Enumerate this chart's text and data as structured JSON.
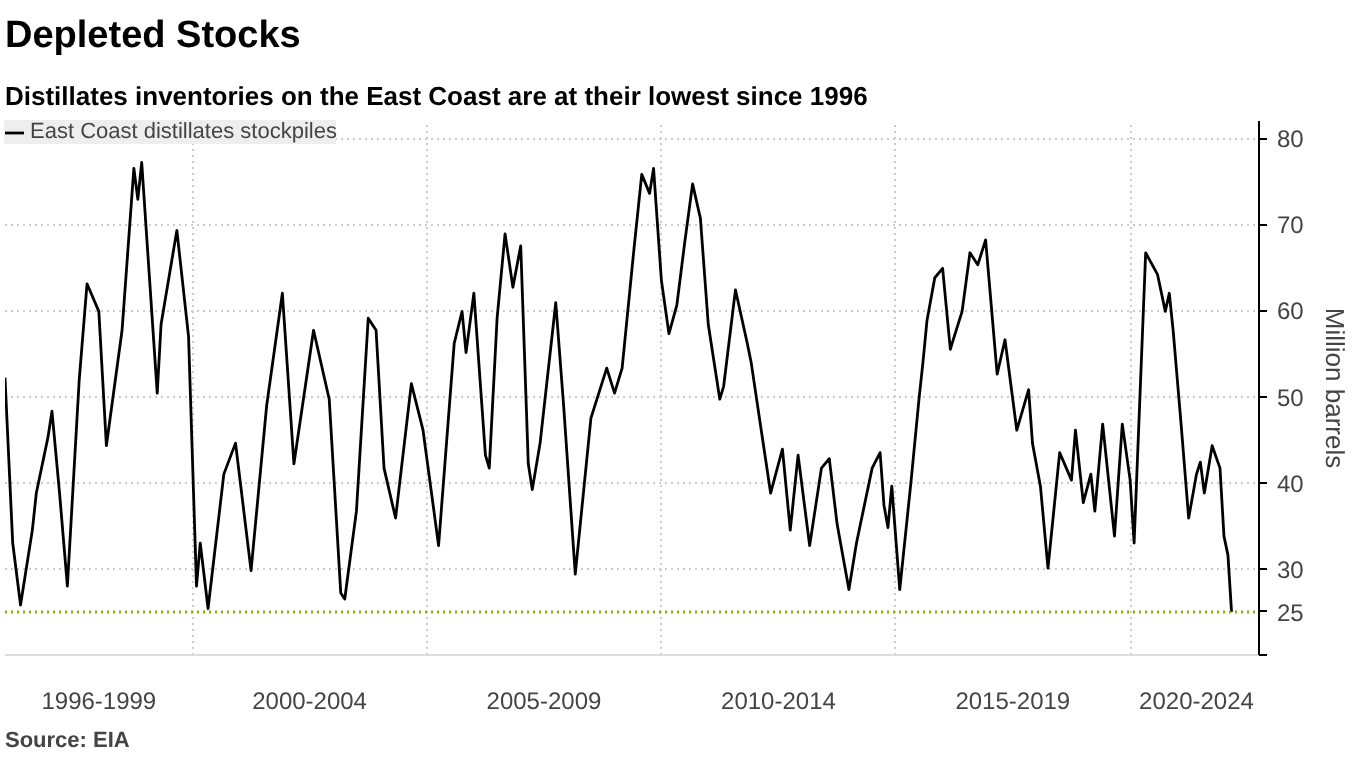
{
  "chart_data": {
    "type": "line",
    "title": "Depleted Stocks",
    "subtitle": "Distillates inventories on the East Coast are at their lowest since 1996",
    "ylabel": "Million barrels",
    "x": [
      "1996-01",
      "1996-03",
      "1996-05",
      "1996-08",
      "1996-09",
      "1996-12",
      "1997-01",
      "1997-03",
      "1997-05",
      "1997-08",
      "1997-10",
      "1998-01",
      "1998-03",
      "1998-07",
      "1998-10",
      "1998-11",
      "1998-12",
      "1999-04",
      "1999-05",
      "1999-09",
      "1999-12",
      "2000-02",
      "2000-03",
      "2000-05",
      "2000-09",
      "2000-12",
      "2001-04",
      "2001-08",
      "2001-12",
      "2002-03",
      "2002-08",
      "2002-12",
      "2003-03",
      "2003-04",
      "2003-07",
      "2003-10",
      "2003-12",
      "2004-02",
      "2004-05",
      "2004-09",
      "2004-12",
      "2005-04",
      "2005-08",
      "2005-10",
      "2005-11",
      "2006-01",
      "2006-04",
      "2006-05",
      "2006-07",
      "2006-09",
      "2006-11",
      "2007-01",
      "2007-03",
      "2007-04",
      "2007-06",
      "2007-10",
      "2007-12",
      "2008-03",
      "2008-07",
      "2008-11",
      "2009-01",
      "2009-03",
      "2009-06",
      "2009-08",
      "2009-10",
      "2009-11",
      "2010-01",
      "2010-03",
      "2010-05",
      "2010-07",
      "2010-09",
      "2010-11",
      "2011-01",
      "2011-04",
      "2011-05",
      "2011-08",
      "2011-11",
      "2011-12",
      "2012-05",
      "2012-08",
      "2012-10",
      "2012-12",
      "2013-03",
      "2013-06",
      "2013-08",
      "2013-10",
      "2014-01",
      "2014-03",
      "2014-07",
      "2014-09",
      "2014-10",
      "2014-11",
      "2014-12",
      "2015-02",
      "2015-05",
      "2015-07",
      "2015-08",
      "2015-09",
      "2015-11",
      "2016-01",
      "2016-03",
      "2016-04",
      "2016-06",
      "2016-08",
      "2016-10",
      "2016-12",
      "2017-03",
      "2017-05",
      "2017-08",
      "2017-11",
      "2017-12",
      "2018-02",
      "2018-04",
      "2018-07",
      "2018-10",
      "2018-11",
      "2019-01",
      "2019-03",
      "2019-04",
      "2019-06",
      "2019-09",
      "2019-11",
      "2020-01",
      "2020-02",
      "2020-05",
      "2020-08",
      "2020-10",
      "2020-11",
      "2020-12",
      "2021-02",
      "2021-04",
      "2021-06",
      "2021-07",
      "2021-08",
      "2021-10",
      "2021-12",
      "2022-01",
      "2022-02",
      "2022-03"
    ],
    "series": [
      {
        "name": "East Coast distillates stockpiles",
        "color": "#000000",
        "values": [
          52.2,
          33.0,
          25.8,
          34.5,
          38.8,
          45.3,
          48.3,
          38.8,
          28.0,
          51.9,
          63.1,
          59.9,
          44.3,
          57.7,
          76.5,
          72.9,
          77.2,
          50.4,
          58.4,
          69.3,
          57.0,
          28.0,
          33.0,
          25.4,
          41.0,
          44.6,
          29.8,
          49.0,
          62.0,
          42.2,
          57.7,
          49.7,
          27.2,
          26.5,
          36.7,
          59.1,
          57.7,
          41.7,
          35.9,
          51.5,
          46.1,
          32.7,
          56.2,
          59.9,
          55.1,
          62.0,
          43.2,
          41.7,
          59.1,
          68.9,
          62.7,
          67.5,
          42.2,
          39.2,
          44.6,
          60.9,
          49.0,
          29.4,
          47.5,
          53.3,
          50.4,
          53.3,
          67.1,
          75.8,
          73.6,
          76.5,
          63.5,
          57.3,
          60.6,
          67.8,
          74.7,
          70.7,
          58.4,
          49.7,
          51.2,
          62.4,
          56.2,
          54.0,
          38.8,
          43.9,
          34.5,
          43.2,
          32.7,
          41.7,
          42.8,
          35.2,
          27.6,
          33.0,
          41.7,
          43.5,
          37.4,
          34.8,
          39.6,
          27.6,
          40.3,
          49.7,
          54.0,
          58.8,
          63.8,
          64.9,
          55.5,
          57.0,
          59.9,
          66.7,
          65.3,
          68.2,
          52.6,
          56.6,
          46.1,
          50.8,
          44.6,
          39.6,
          30.1,
          43.5,
          40.3,
          46.1,
          37.7,
          41.0,
          36.7,
          46.8,
          33.8,
          46.8,
          40.3,
          33.0,
          66.7,
          64.2,
          59.9,
          62.0,
          57.7,
          46.8,
          35.9,
          41.0,
          42.4,
          38.8,
          44.3,
          41.7,
          33.8,
          31.6,
          25
        ]
      }
    ],
    "xlim": [
      "1996-01",
      "2022-10"
    ],
    "xticks": [
      {
        "value": "1998-01",
        "label": "1996-1999"
      },
      {
        "value": "2000-01",
        "label": null
      },
      {
        "value": "2002-07",
        "label": "2000-2004"
      },
      {
        "value": "2005-01",
        "label": null
      },
      {
        "value": "2007-07",
        "label": "2005-2009"
      },
      {
        "value": "2010-01",
        "label": null
      },
      {
        "value": "2012-07",
        "label": "2010-2014"
      },
      {
        "value": "2015-01",
        "label": null
      },
      {
        "value": "2017-07",
        "label": "2015-2019"
      },
      {
        "value": "2020-01",
        "label": null
      },
      {
        "value": "2021-06",
        "label": "2020-2024"
      }
    ],
    "ylim": [
      20,
      82
    ],
    "yticks": [
      {
        "value": 20,
        "label": null
      },
      30,
      40,
      50,
      60,
      70,
      80
    ],
    "ref_lines": [
      {
        "axis": "y",
        "value": 25,
        "label": "25",
        "color": "#7fba00",
        "line_style": "dotted"
      }
    ],
    "annotations": [
      "Source: EIA"
    ],
    "grid": true,
    "legend": "top left",
    "line_style": "solid",
    "marker": "none"
  }
}
